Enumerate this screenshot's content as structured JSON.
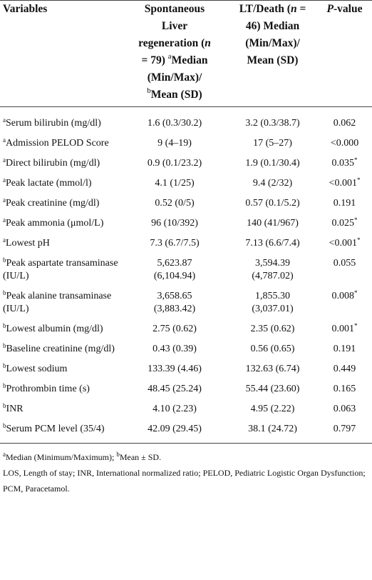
{
  "table": {
    "header": {
      "variables": "Variables",
      "spontaneous": {
        "title": "Spontaneous Liver regeneration",
        "n_open": "(",
        "n": "n",
        "n_rest": " = 79)",
        "sup_a": "a",
        "median": "Median (Min/Max)/",
        "sup_b": "b",
        "mean": "Mean (SD)"
      },
      "lt": {
        "title": "LT/Death",
        "n_open": "(",
        "n": "n",
        "n_rest": " = 46)",
        "median": "Median (Min/Max)/",
        "mean": "Mean (SD)"
      },
      "p_value": {
        "p": "P",
        "rest": "-value"
      }
    },
    "rows": [
      {
        "sup": "a",
        "variable": "Serum bilirubin (mg/dl)",
        "spontaneous": "1.6 (0.3/30.2)",
        "lt": "3.2 (0.3/38.7)",
        "p": "0.062"
      },
      {
        "sup": "a",
        "variable": "Admission PELOD Score",
        "spontaneous": "9 (4–19)",
        "lt": "17 (5–27)",
        "p": "<0.000"
      },
      {
        "sup": "a",
        "variable": "Direct bilirubin (mg/dl)",
        "spontaneous": "0.9 (0.1/23.2)",
        "lt": "1.9 (0.1/30.4)",
        "p": "0.035",
        "p_sup": "*"
      },
      {
        "sup": "a",
        "variable": "Peak lactate (mmol/l)",
        "spontaneous": "4.1 (1/25)",
        "lt": "9.4 (2/32)",
        "p": "<0.001",
        "p_sup": "*"
      },
      {
        "sup": "a",
        "variable": "Peak creatinine (mg/dl)",
        "spontaneous": "0.52 (0/5)",
        "lt": "0.57 (0.1/5.2)",
        "p": "0.191"
      },
      {
        "sup": "a",
        "variable": "Peak ammonia (μmol/L)",
        "spontaneous": "96 (10/392)",
        "lt": "140 (41/967)",
        "p": "0.025",
        "p_sup": "*"
      },
      {
        "sup": "a",
        "variable": "Lowest pH",
        "spontaneous": "7.3 (6.7/7.5)",
        "lt": "7.13 (6.6/7.4)",
        "p": "<0.001",
        "p_sup": "*"
      },
      {
        "sup": "b",
        "variable": "Peak aspartate transaminase (IU/L)",
        "spontaneous": "5,623.87 (6,104.94)",
        "lt": "3,594.39 (4,787.02)",
        "p": "0.055"
      },
      {
        "sup": "b",
        "variable": "Peak alanine transaminase (IU/L)",
        "spontaneous": "3,658.65 (3,883.42)",
        "lt": "1,855.30 (3,037.01)",
        "p": "0.008",
        "p_sup": "*"
      },
      {
        "sup": "b",
        "variable": "Lowest albumin (mg/dl)",
        "spontaneous": "2.75 (0.62)",
        "lt": "2.35 (0.62)",
        "p": "0.001",
        "p_sup": "*"
      },
      {
        "sup": "b",
        "variable": "Baseline creatinine (mg/dl)",
        "spontaneous": "0.43 (0.39)",
        "lt": "0.56 (0.65)",
        "p": "0.191"
      },
      {
        "sup": "b",
        "variable": "Lowest sodium",
        "spontaneous": "133.39 (4.46)",
        "lt": "132.63 (6.74)",
        "p": "0.449"
      },
      {
        "sup": "b",
        "variable": "Prothrombin time (s)",
        "spontaneous": "48.45 (25.24)",
        "lt": "55.44 (23.60)",
        "p": "0.165"
      },
      {
        "sup": "b",
        "variable": "INR",
        "spontaneous": "4.10 (2.23)",
        "lt": "4.95 (2.22)",
        "p": "0.063"
      },
      {
        "sup": "b",
        "variable": "Serum PCM level (35/4)",
        "spontaneous": "42.09 (29.45)",
        "lt": "38.1 (24.72)",
        "p": "0.797"
      }
    ]
  },
  "footnotes": {
    "sup_a": "a",
    "a": "Median (Minimum/Maximum); ",
    "sup_b": "b",
    "b": "Mean ± SD.",
    "abbrev": "LOS, Length of stay; INR, International normalized ratio; PELOD, Pediatric Logistic Organ Dysfunction; PCM, Paracetamol."
  }
}
